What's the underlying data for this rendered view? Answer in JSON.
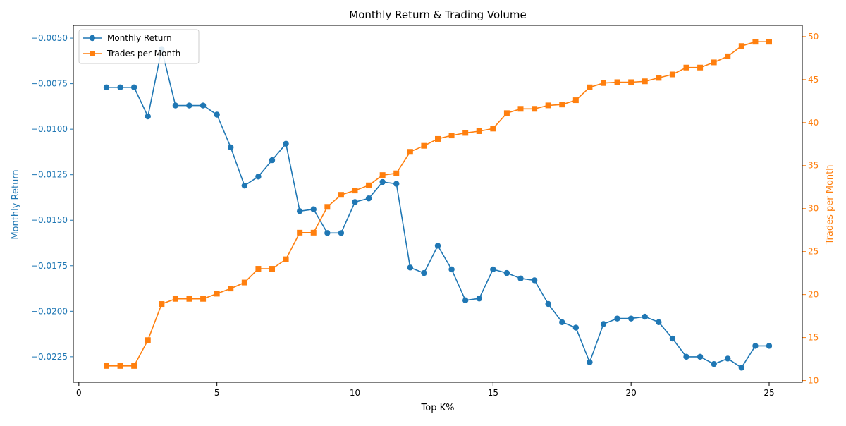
{
  "chart_data": {
    "type": "line",
    "title": "Monthly Return & Trading Volume",
    "xlabel": "Top K%",
    "ylabel_left": "Monthly Return",
    "ylabel_right": "Trades per Month",
    "x": [
      1,
      1.5,
      2,
      2.5,
      3,
      3.5,
      4,
      4.5,
      5,
      5.5,
      6,
      6.5,
      7,
      7.5,
      8,
      8.5,
      9,
      9.5,
      10,
      10.5,
      11,
      11.5,
      12,
      12.5,
      13,
      13.5,
      14,
      14.5,
      15,
      15.5,
      16,
      16.5,
      17,
      17.5,
      18,
      18.5,
      19,
      19.5,
      20,
      20.5,
      21,
      21.5,
      22,
      22.5,
      23,
      23.5,
      24,
      24.5,
      25
    ],
    "xlim": [
      -0.2,
      26.2
    ],
    "xticks": [
      0,
      5,
      10,
      15,
      20,
      25
    ],
    "left_axis": {
      "ylim": [
        -0.0239,
        -0.0043
      ],
      "ticks": [
        -0.0225,
        -0.02,
        -0.0175,
        -0.015,
        -0.0125,
        -0.01,
        -0.0075,
        -0.005
      ],
      "tick_labels": [
        "−0.0225",
        "−0.0200",
        "−0.0175",
        "−0.0150",
        "−0.0125",
        "−0.0100",
        "−0.0075",
        "−0.0050"
      ]
    },
    "right_axis": {
      "ylim": [
        9.8,
        51.3
      ],
      "ticks": [
        10,
        15,
        20,
        25,
        30,
        35,
        40,
        45,
        50
      ],
      "tick_labels": [
        "10",
        "15",
        "20",
        "25",
        "30",
        "35",
        "40",
        "45",
        "50"
      ]
    },
    "legend_position": "top-left",
    "series": [
      {
        "name": "Monthly Return",
        "axis": "left",
        "color": "#1f77b4",
        "marker": "circle",
        "values": [
          -0.0077,
          -0.0077,
          -0.0077,
          -0.0093,
          -0.0056,
          -0.0087,
          -0.0087,
          -0.0087,
          -0.0092,
          -0.011,
          -0.0131,
          -0.0126,
          -0.0117,
          -0.0108,
          -0.0145,
          -0.0144,
          -0.0157,
          -0.0157,
          -0.014,
          -0.0138,
          -0.0129,
          -0.013,
          -0.0176,
          -0.0179,
          -0.0164,
          -0.0177,
          -0.0194,
          -0.0193,
          -0.0177,
          -0.0179,
          -0.0182,
          -0.0183,
          -0.0196,
          -0.0206,
          -0.0209,
          -0.0228,
          -0.0207,
          -0.0204,
          -0.0204,
          -0.0203,
          -0.0206,
          -0.0215,
          -0.0225,
          -0.0225,
          -0.0229,
          -0.0226,
          -0.0231,
          -0.0219,
          -0.0219
        ]
      },
      {
        "name": "Trades per Month",
        "axis": "right",
        "color": "#ff7f0e",
        "marker": "square",
        "values": [
          11.7,
          11.7,
          11.7,
          14.7,
          18.9,
          19.5,
          19.5,
          19.5,
          20.1,
          20.7,
          21.4,
          23.0,
          23.0,
          24.1,
          27.2,
          27.2,
          30.2,
          31.6,
          32.1,
          32.7,
          33.9,
          34.1,
          36.6,
          37.3,
          38.1,
          38.5,
          38.8,
          39.0,
          39.3,
          41.1,
          41.6,
          41.6,
          42.0,
          42.1,
          42.6,
          44.1,
          44.6,
          44.7,
          44.7,
          44.8,
          45.2,
          45.6,
          46.4,
          46.4,
          47.0,
          47.7,
          48.9,
          49.4,
          49.4
        ]
      }
    ]
  }
}
